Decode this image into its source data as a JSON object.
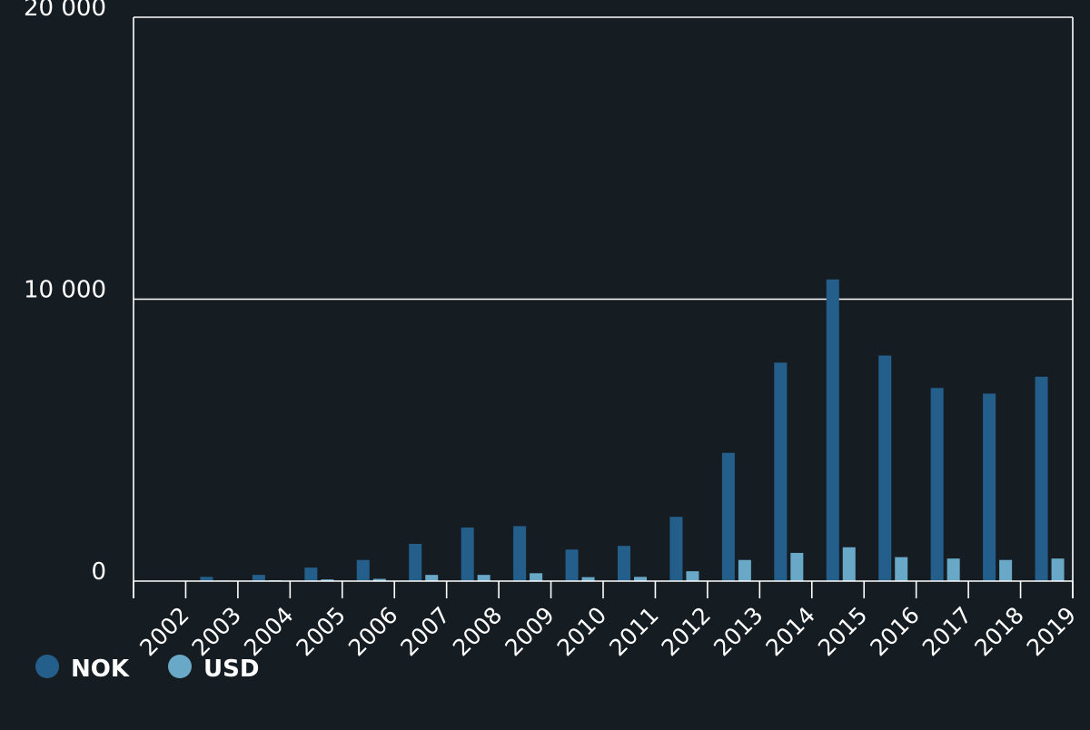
{
  "chart_data": {
    "type": "bar",
    "categories": [
      "2002",
      "2003",
      "2004",
      "2005",
      "2006",
      "2007",
      "2008",
      "2009",
      "2010",
      "2011",
      "2012",
      "2013",
      "2014",
      "2015",
      "2016",
      "2017",
      "2018",
      "2019"
    ],
    "series": [
      {
        "name": "NOK",
        "color": "#245f8b",
        "values": [
          0,
          150,
          220,
          480,
          750,
          1320,
          1900,
          1950,
          1120,
          1250,
          2280,
          4550,
          7750,
          10700,
          8000,
          6850,
          6650,
          7250
        ]
      },
      {
        "name": "USD",
        "color": "#6aa8c8",
        "values": [
          0,
          20,
          30,
          60,
          80,
          220,
          220,
          280,
          140,
          150,
          350,
          750,
          1000,
          1200,
          850,
          800,
          750,
          800
        ]
      }
    ],
    "y_ticks": [
      0,
      10000,
      20000
    ],
    "y_tick_labels": [
      "0",
      "10 000",
      "20 000"
    ],
    "ylim": [
      0,
      20000
    ],
    "grid": true,
    "legend_position": "bottom-left",
    "title": "",
    "xlabel": "",
    "ylabel": ""
  },
  "colors": {
    "background": "#151d23",
    "axis": "#ffffff",
    "text": "#ffffff"
  }
}
